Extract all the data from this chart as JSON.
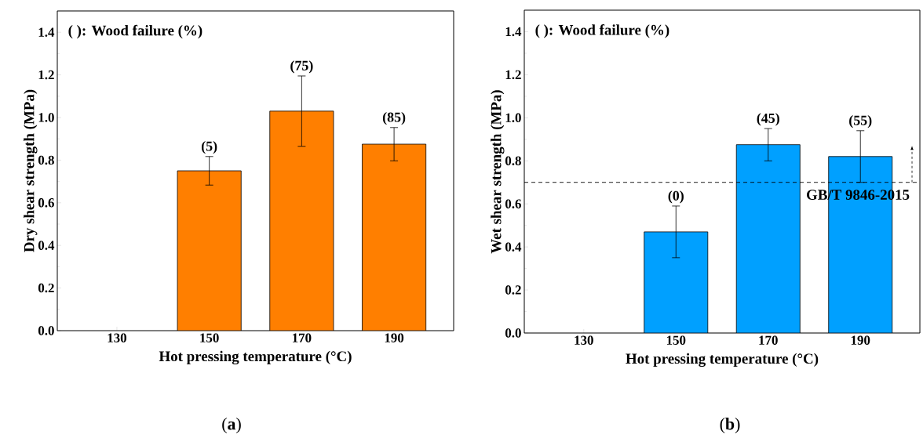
{
  "chart_data": [
    {
      "type": "bar",
      "xlabel": "Hot pressing temperature (°C)",
      "ylabel": "Dry shear strength (MPa)",
      "categories": [
        "130",
        "150",
        "170",
        "190"
      ],
      "values": [
        null,
        0.75,
        1.03,
        0.875
      ],
      "errors": [
        null,
        0.067,
        0.165,
        0.078
      ],
      "color": "#ff7f00",
      "ylim": [
        0,
        1.5
      ],
      "yticks": [
        {
          "value": 0,
          "label": "0.0"
        },
        {
          "value": 0.2,
          "label": "0.2"
        },
        {
          "value": 0.4,
          "label": "0.4"
        },
        {
          "value": 0.6,
          "label": "0.6"
        },
        {
          "value": 0.8,
          "label": "0.8"
        },
        {
          "value": 1.0,
          "label": "1.0"
        },
        {
          "value": 1.2,
          "label": "1.2"
        },
        {
          "value": 1.4,
          "label": "1.4"
        }
      ],
      "annotations": [
        "( ): Wood failure (%)",
        "(**a**)",
        "(5)",
        "(75)",
        "(85)"
      ],
      "grid": false
    },
    {
      "type": "bar",
      "xlabel": "Hot pressing temperature (°C)",
      "ylabel": "Wet shear strength (MPa)",
      "categories": [
        "130",
        "150",
        "170",
        "190"
      ],
      "values": [
        null,
        0.47,
        0.875,
        0.82
      ],
      "errors": [
        null,
        0.12,
        0.075,
        0.12
      ],
      "color": "#00a0ff",
      "ylim": [
        0,
        1.5
      ],
      "yticks": [
        {
          "value": 0,
          "label": "0.0"
        },
        {
          "value": 0.2,
          "label": "0.2"
        },
        {
          "value": 0.4,
          "label": "0.4"
        },
        {
          "value": 0.6,
          "label": "0.6"
        },
        {
          "value": 0.8,
          "label": "0.8"
        },
        {
          "value": 1.0,
          "label": "1.0"
        },
        {
          "value": 1.2,
          "label": "1.2"
        },
        {
          "value": 1.4,
          "label": "1.4"
        }
      ],
      "ref_lines": [
        {
          "axis": "y",
          "value": 0.7,
          "label": "GB/T 9846-2015",
          "line_style": "dashed",
          "color": "#000000"
        }
      ],
      "annotations": [
        "( ): Wood failure (%)",
        "(**b**)",
        "(0)",
        "(45)",
        "(55)"
      ],
      "grid": false
    }
  ]
}
